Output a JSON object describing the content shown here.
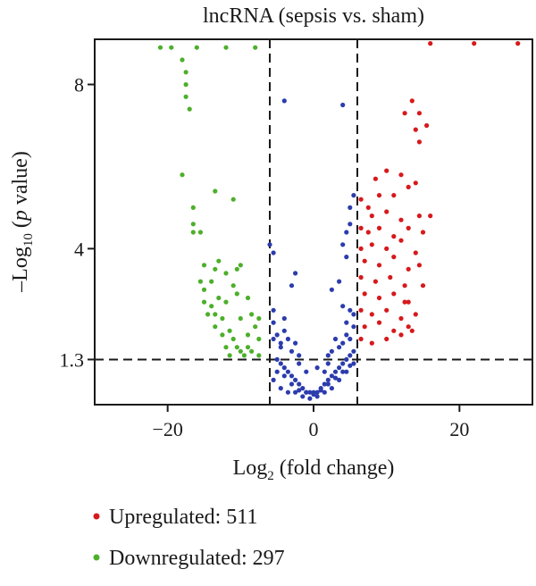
{
  "chart_data": {
    "type": "scatter",
    "title": "lncRNA (sepsis vs. sham)",
    "xlabel": {
      "prefix": "Log",
      "sub": "2",
      "suffix": " (fold change)"
    },
    "ylabel": {
      "prefix": "–Log",
      "sub": "10",
      "mid": " (",
      "italic": "p",
      "suffix": " value)"
    },
    "xlim": [
      -30,
      30
    ],
    "ylim": [
      0.2,
      9.1
    ],
    "x_ticks": [
      {
        "value": -20,
        "label": "−20"
      },
      {
        "value": 0,
        "label": "0"
      },
      {
        "value": 20,
        "label": "20"
      }
    ],
    "y_ticks": [
      {
        "value": 1.3,
        "label": "1.3"
      },
      {
        "value": 4,
        "label": "4"
      },
      {
        "value": 8,
        "label": "8"
      }
    ],
    "thresholds": {
      "x": [
        -6,
        6
      ],
      "y": 1.3
    },
    "grid": false,
    "legend_position": "bottom-left",
    "series": [
      {
        "key": "up",
        "name": "Upregulated",
        "count": 511,
        "color": "#d7191c",
        "points": [
          [
            6.5,
            5.2
          ],
          [
            7.5,
            5.0
          ],
          [
            9.0,
            5.3
          ],
          [
            11.0,
            5.3
          ],
          [
            8.0,
            4.8
          ],
          [
            10.0,
            4.9
          ],
          [
            12.0,
            4.7
          ],
          [
            6.5,
            4.5
          ],
          [
            7.5,
            4.4
          ],
          [
            9.0,
            4.5
          ],
          [
            11.0,
            4.3
          ],
          [
            13.0,
            4.5
          ],
          [
            6.5,
            4.0
          ],
          [
            8.0,
            4.1
          ],
          [
            10.0,
            4.0
          ],
          [
            12.0,
            4.2
          ],
          [
            14.0,
            3.9
          ],
          [
            7.0,
            3.7
          ],
          [
            9.0,
            3.6
          ],
          [
            11.0,
            3.8
          ],
          [
            13.0,
            3.5
          ],
          [
            6.5,
            3.3
          ],
          [
            8.5,
            3.2
          ],
          [
            10.5,
            3.3
          ],
          [
            12.5,
            3.1
          ],
          [
            7.0,
            2.9
          ],
          [
            9.0,
            2.8
          ],
          [
            11.0,
            2.9
          ],
          [
            13.0,
            2.7
          ],
          [
            6.5,
            2.5
          ],
          [
            8.0,
            2.4
          ],
          [
            10.0,
            2.5
          ],
          [
            12.0,
            2.3
          ],
          [
            14.0,
            2.4
          ],
          [
            7.0,
            2.1
          ],
          [
            9.0,
            2.2
          ],
          [
            11.0,
            2.0
          ],
          [
            13.0,
            2.1
          ],
          [
            6.5,
            1.8
          ],
          [
            8.0,
            1.7
          ],
          [
            10.0,
            1.8
          ],
          [
            12.0,
            1.9
          ],
          [
            13.5,
            7.6
          ],
          [
            12.5,
            7.3
          ],
          [
            14.5,
            7.3
          ],
          [
            15.5,
            7.0
          ],
          [
            14.0,
            6.9
          ],
          [
            14.5,
            6.6
          ],
          [
            12.0,
            5.8
          ],
          [
            13.0,
            5.5
          ],
          [
            10.0,
            5.9
          ],
          [
            14.0,
            5.6
          ],
          [
            8.5,
            5.7
          ],
          [
            14.5,
            4.8
          ],
          [
            15.0,
            4.4
          ],
          [
            14.5,
            3.6
          ],
          [
            15.0,
            3.1
          ],
          [
            16.0,
            4.8
          ],
          [
            13.5,
            2.0
          ],
          [
            12.5,
            2.7
          ],
          [
            16.0,
            9.0
          ],
          [
            22.0,
            9.0
          ],
          [
            28.0,
            9.0
          ]
        ]
      },
      {
        "key": "down",
        "name": "Downregulated",
        "count": 297,
        "color": "#4daf2a",
        "points": [
          [
            -16.0,
            8.9
          ],
          [
            -17.5,
            8.3
          ],
          [
            -18.0,
            8.6
          ],
          [
            -17.5,
            8.0
          ],
          [
            -17.5,
            7.7
          ],
          [
            -17.0,
            7.4
          ],
          [
            -18.0,
            5.8
          ],
          [
            -13.5,
            5.4
          ],
          [
            -11.0,
            5.2
          ],
          [
            -16.5,
            5.0
          ],
          [
            -16.5,
            4.6
          ],
          [
            -16.5,
            4.4
          ],
          [
            -15.5,
            4.4
          ],
          [
            -15.0,
            3.6
          ],
          [
            -12.0,
            3.4
          ],
          [
            -13.0,
            3.7
          ],
          [
            -13.5,
            3.5
          ],
          [
            -10.5,
            3.5
          ],
          [
            -10.0,
            3.6
          ],
          [
            -15.5,
            3.2
          ],
          [
            -15.0,
            2.7
          ],
          [
            -11.0,
            3.1
          ],
          [
            -14.0,
            3.2
          ],
          [
            -13.0,
            2.8
          ],
          [
            -12.0,
            2.7
          ],
          [
            -9.0,
            2.8
          ],
          [
            -13.5,
            2.4
          ],
          [
            -14.5,
            2.4
          ],
          [
            -12.5,
            2.3
          ],
          [
            -11.5,
            2.0
          ],
          [
            -10.0,
            2.3
          ],
          [
            -9.0,
            1.9
          ],
          [
            -12.5,
            1.9
          ],
          [
            -13.5,
            2.1
          ],
          [
            -12.0,
            1.6
          ],
          [
            -10.5,
            1.6
          ],
          [
            -9.0,
            1.6
          ],
          [
            -11.5,
            1.4
          ],
          [
            -10.0,
            1.5
          ],
          [
            -9.5,
            1.4
          ],
          [
            -8.5,
            2.4
          ],
          [
            -8.0,
            2.1
          ],
          [
            -7.5,
            2.3
          ],
          [
            -7.5,
            1.8
          ],
          [
            -8.5,
            1.5
          ],
          [
            -7.5,
            1.4
          ],
          [
            -11.0,
            1.8
          ],
          [
            -10.5,
            2.9
          ],
          [
            -15.0,
            3.0
          ],
          [
            -14.0,
            2.6
          ],
          [
            -21.0,
            8.9
          ],
          [
            -19.5,
            8.9
          ],
          [
            -12.0,
            8.9
          ],
          [
            -8.0,
            8.9
          ]
        ]
      },
      {
        "key": "ns",
        "name": "",
        "color": "#2c3cad",
        "points": [
          [
            -4.0,
            7.6
          ],
          [
            4.0,
            7.5
          ],
          [
            -6.0,
            4.1
          ],
          [
            -5.5,
            3.9
          ],
          [
            4.0,
            4.1
          ],
          [
            4.5,
            4.4
          ],
          [
            5.0,
            5.0
          ],
          [
            5.5,
            5.3
          ],
          [
            5.0,
            4.6
          ],
          [
            4.5,
            3.8
          ],
          [
            3.5,
            3.2
          ],
          [
            2.5,
            3.0
          ],
          [
            -2.5,
            3.4
          ],
          [
            -3.0,
            3.1
          ],
          [
            -5.5,
            2.5
          ],
          [
            5.0,
            2.5
          ],
          [
            5.5,
            2.4
          ],
          [
            4.0,
            2.6
          ],
          [
            -5.5,
            1.8
          ],
          [
            -5.0,
            1.9
          ],
          [
            -4.5,
            1.7
          ],
          [
            -4.0,
            2.0
          ],
          [
            -4.5,
            1.6
          ],
          [
            -3.5,
            1.8
          ],
          [
            -3.0,
            1.5
          ],
          [
            -2.5,
            1.7
          ],
          [
            -2.0,
            1.4
          ],
          [
            5.0,
            1.8
          ],
          [
            4.5,
            1.9
          ],
          [
            4.0,
            1.7
          ],
          [
            3.5,
            1.6
          ],
          [
            3.0,
            1.8
          ],
          [
            2.5,
            1.5
          ],
          [
            2.0,
            1.4
          ],
          [
            -5.0,
            1.3
          ],
          [
            -4.5,
            1.2
          ],
          [
            -4.0,
            1.1
          ],
          [
            -3.5,
            1.0
          ],
          [
            -3.0,
            0.9
          ],
          [
            -2.5,
            0.8
          ],
          [
            -2.0,
            0.7
          ],
          [
            -1.5,
            0.6
          ],
          [
            -1.0,
            0.5
          ],
          [
            -0.5,
            0.5
          ],
          [
            0.0,
            0.45
          ],
          [
            0.5,
            0.5
          ],
          [
            1.0,
            0.6
          ],
          [
            1.5,
            0.7
          ],
          [
            2.0,
            0.8
          ],
          [
            2.5,
            0.9
          ],
          [
            3.0,
            1.0
          ],
          [
            3.5,
            1.1
          ],
          [
            4.0,
            1.2
          ],
          [
            4.5,
            1.3
          ],
          [
            5.0,
            1.4
          ],
          [
            5.5,
            1.5
          ],
          [
            -5.5,
            0.8
          ],
          [
            -4.5,
            0.6
          ],
          [
            -3.5,
            0.5
          ],
          [
            -2.5,
            0.5
          ],
          [
            -1.5,
            0.4
          ],
          [
            -0.5,
            0.35
          ],
          [
            0.5,
            0.4
          ],
          [
            1.5,
            0.5
          ],
          [
            2.5,
            0.6
          ],
          [
            3.5,
            0.8
          ],
          [
            4.5,
            1.0
          ],
          [
            5.5,
            1.2
          ],
          [
            -5.0,
            1.0
          ],
          [
            -4.0,
            0.9
          ],
          [
            -3.0,
            0.7
          ],
          [
            -2.0,
            0.55
          ],
          [
            -1.0,
            0.5
          ],
          [
            0.0,
            0.5
          ],
          [
            1.0,
            0.55
          ],
          [
            2.0,
            0.7
          ],
          [
            3.0,
            0.85
          ],
          [
            4.0,
            1.0
          ],
          [
            5.0,
            1.15
          ],
          [
            -1.0,
            1.0
          ],
          [
            0.5,
            1.1
          ],
          [
            1.5,
            1.0
          ],
          [
            2.0,
            1.2
          ],
          [
            -2.0,
            1.2
          ],
          [
            -5.5,
            2.2
          ],
          [
            5.5,
            2.1
          ],
          [
            -4.0,
            2.3
          ],
          [
            4.5,
            2.2
          ]
        ]
      }
    ]
  }
}
